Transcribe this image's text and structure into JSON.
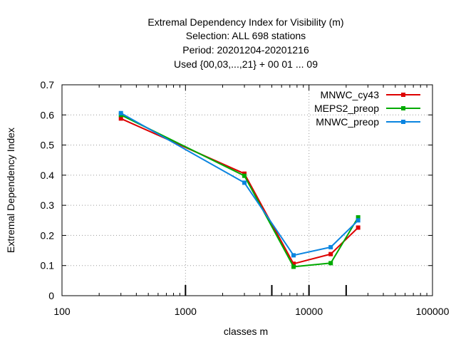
{
  "chart_data": {
    "type": "line",
    "title": [
      "Extremal Dependency Index  for Visibility (m)",
      "Selection: ALL    698 stations",
      "Period: 20201204-20201216",
      "Used {00,03,...,21} + 00 01 ... 09"
    ],
    "xlabel": "classes m",
    "ylabel": "Extremal Dependency Index",
    "xscale": "log",
    "xlim": [
      100,
      100000
    ],
    "ylim": [
      0,
      0.7
    ],
    "x_ticks": [
      100,
      1000,
      10000,
      100000
    ],
    "x_tick_labels": [
      "100",
      "1000",
      "10000",
      "100000"
    ],
    "y_ticks": [
      0,
      0.1,
      0.2,
      0.3,
      0.4,
      0.5,
      0.6,
      0.7
    ],
    "y_tick_labels": [
      "0",
      "0.1",
      "0.2",
      "0.3",
      "0.4",
      "0.5",
      "0.6",
      "0.7"
    ],
    "x_axis_markers": [
      1000,
      5000,
      10000,
      20000
    ],
    "grid": true,
    "legend_position": "top-right",
    "x": [
      300,
      3000,
      7500,
      15000,
      25000
    ],
    "series": [
      {
        "name": "MNWC_cy43",
        "color": "#dd0000",
        "values": [
          0.588,
          0.405,
          0.106,
          0.138,
          0.226
        ]
      },
      {
        "name": "MEPS2_preop",
        "color": "#00aa00",
        "values": [
          0.6,
          0.398,
          0.096,
          0.108,
          0.26
        ]
      },
      {
        "name": "MNWC_preop",
        "color": "#0a84e0",
        "values": [
          0.606,
          0.375,
          0.134,
          0.161,
          0.25
        ]
      }
    ]
  }
}
